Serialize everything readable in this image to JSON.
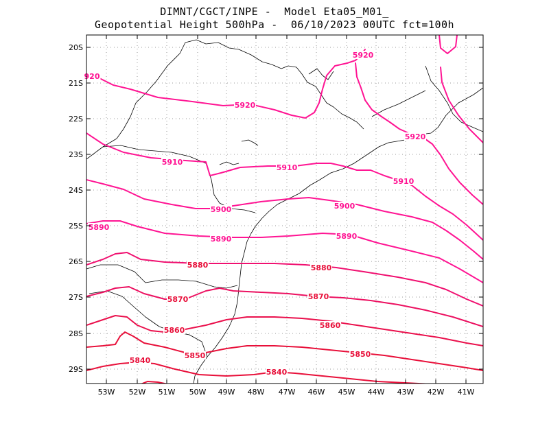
{
  "header": {
    "line1": "DIMNT/CGCT/INPE -  Model Eta05_M01_",
    "line2": "Geopotential Height 500hPa -  06/10/2023 00UTC fct=100h"
  },
  "axes": {
    "lat_labels": [
      "20S",
      "21S",
      "22S",
      "23S",
      "24S",
      "25S",
      "26S",
      "27S",
      "28S",
      "29S"
    ],
    "lon_labels": [
      "53W",
      "52W",
      "51W",
      "50W",
      "49W",
      "48W",
      "47W",
      "46W",
      "45W",
      "44W",
      "43W",
      "42W",
      "41W"
    ]
  },
  "colors": {
    "contour_high": "#ff1493",
    "contour_low": "#e8103a",
    "coast": "#000000",
    "grid": "#999999"
  },
  "contours": [
    {
      "value": "5920",
      "labels": [
        "920",
        "5920",
        "5920",
        "5920"
      ]
    },
    {
      "value": "5910",
      "labels": [
        "5910",
        "5910",
        "5910"
      ]
    },
    {
      "value": "5900",
      "labels": [
        "5900",
        "5900"
      ]
    },
    {
      "value": "5890",
      "labels": [
        "5890",
        "5890",
        "5890"
      ]
    },
    {
      "value": "5880",
      "labels": [
        "5880",
        "5880"
      ]
    },
    {
      "value": "5870",
      "labels": [
        "5870",
        "5870"
      ]
    },
    {
      "value": "5860",
      "labels": [
        "5860",
        "5860"
      ]
    },
    {
      "value": "5850",
      "labels": [
        "5850",
        "5850"
      ]
    },
    {
      "value": "5840",
      "labels": [
        "5840",
        "5840"
      ]
    }
  ]
}
